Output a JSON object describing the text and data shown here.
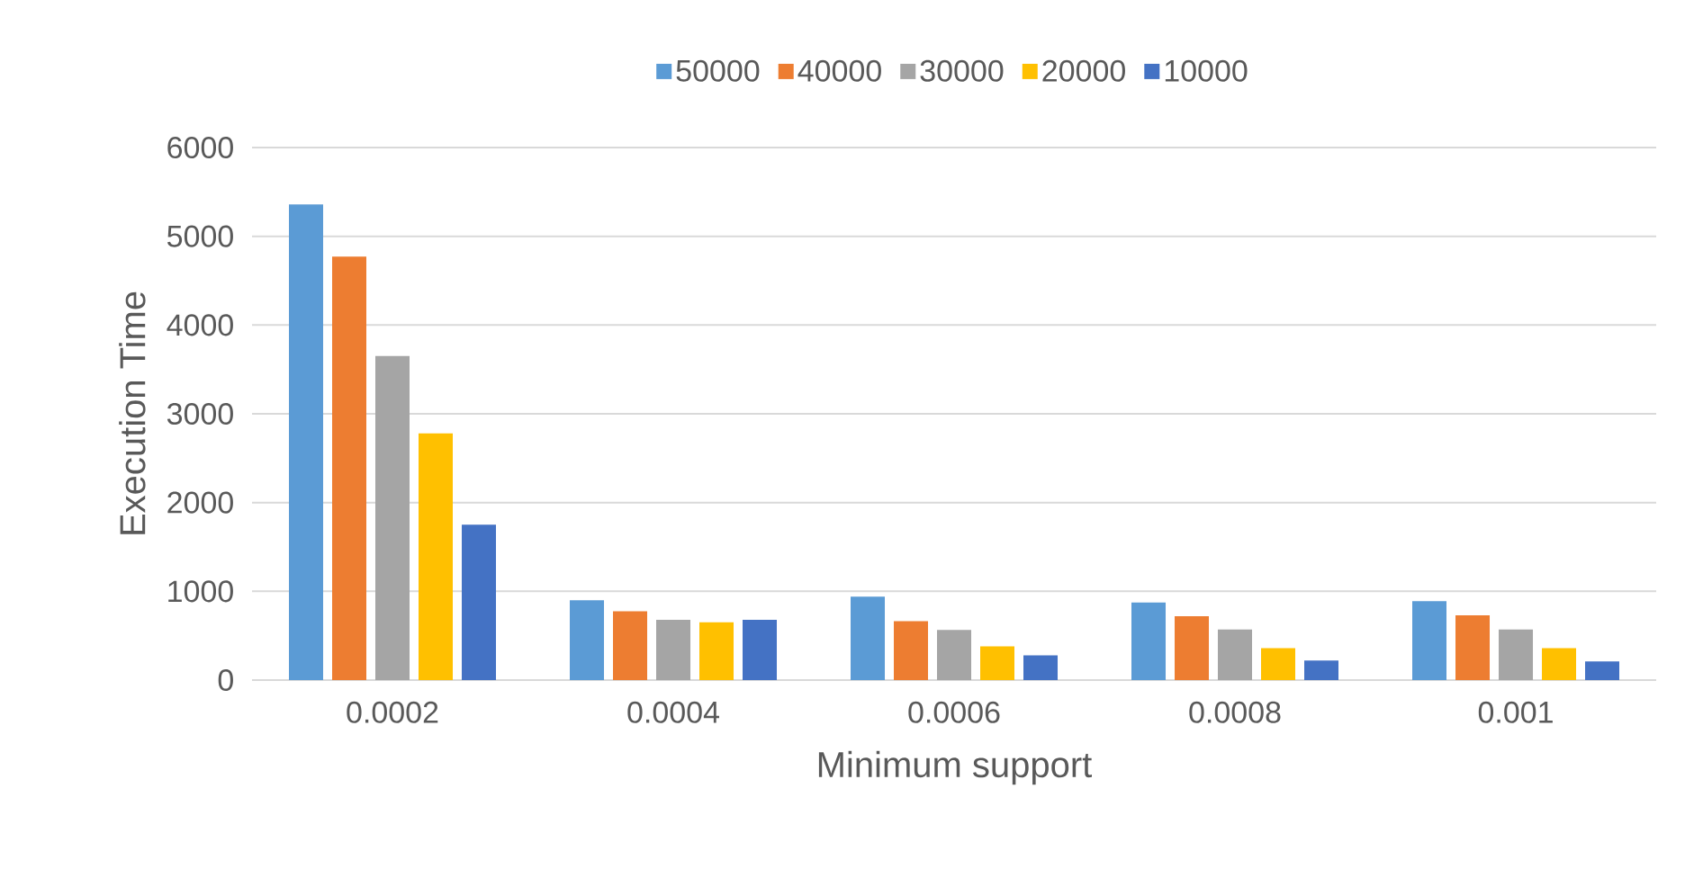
{
  "chart_data": {
    "type": "bar",
    "xlabel": "Minimum support",
    "ylabel": "Execution Time",
    "categories": [
      "0.0002",
      "0.0004",
      "0.0006",
      "0.0008",
      "0.001"
    ],
    "series": [
      {
        "name": "50000",
        "color": "#5b9bd5",
        "values": [
          5360,
          900,
          940,
          875,
          890
        ]
      },
      {
        "name": "40000",
        "color": "#ed7d31",
        "values": [
          4770,
          775,
          665,
          720,
          730
        ]
      },
      {
        "name": "30000",
        "color": "#a5a5a5",
        "values": [
          3650,
          680,
          565,
          570,
          570
        ]
      },
      {
        "name": "20000",
        "color": "#ffc000",
        "values": [
          2780,
          650,
          380,
          360,
          360
        ]
      },
      {
        "name": "10000",
        "color": "#4472c4",
        "values": [
          1750,
          680,
          280,
          220,
          210
        ]
      }
    ],
    "ylim": [
      0,
      6000
    ],
    "yticks": [
      0,
      1000,
      2000,
      3000,
      4000,
      5000,
      6000
    ],
    "grid": "y",
    "legend": "top"
  }
}
